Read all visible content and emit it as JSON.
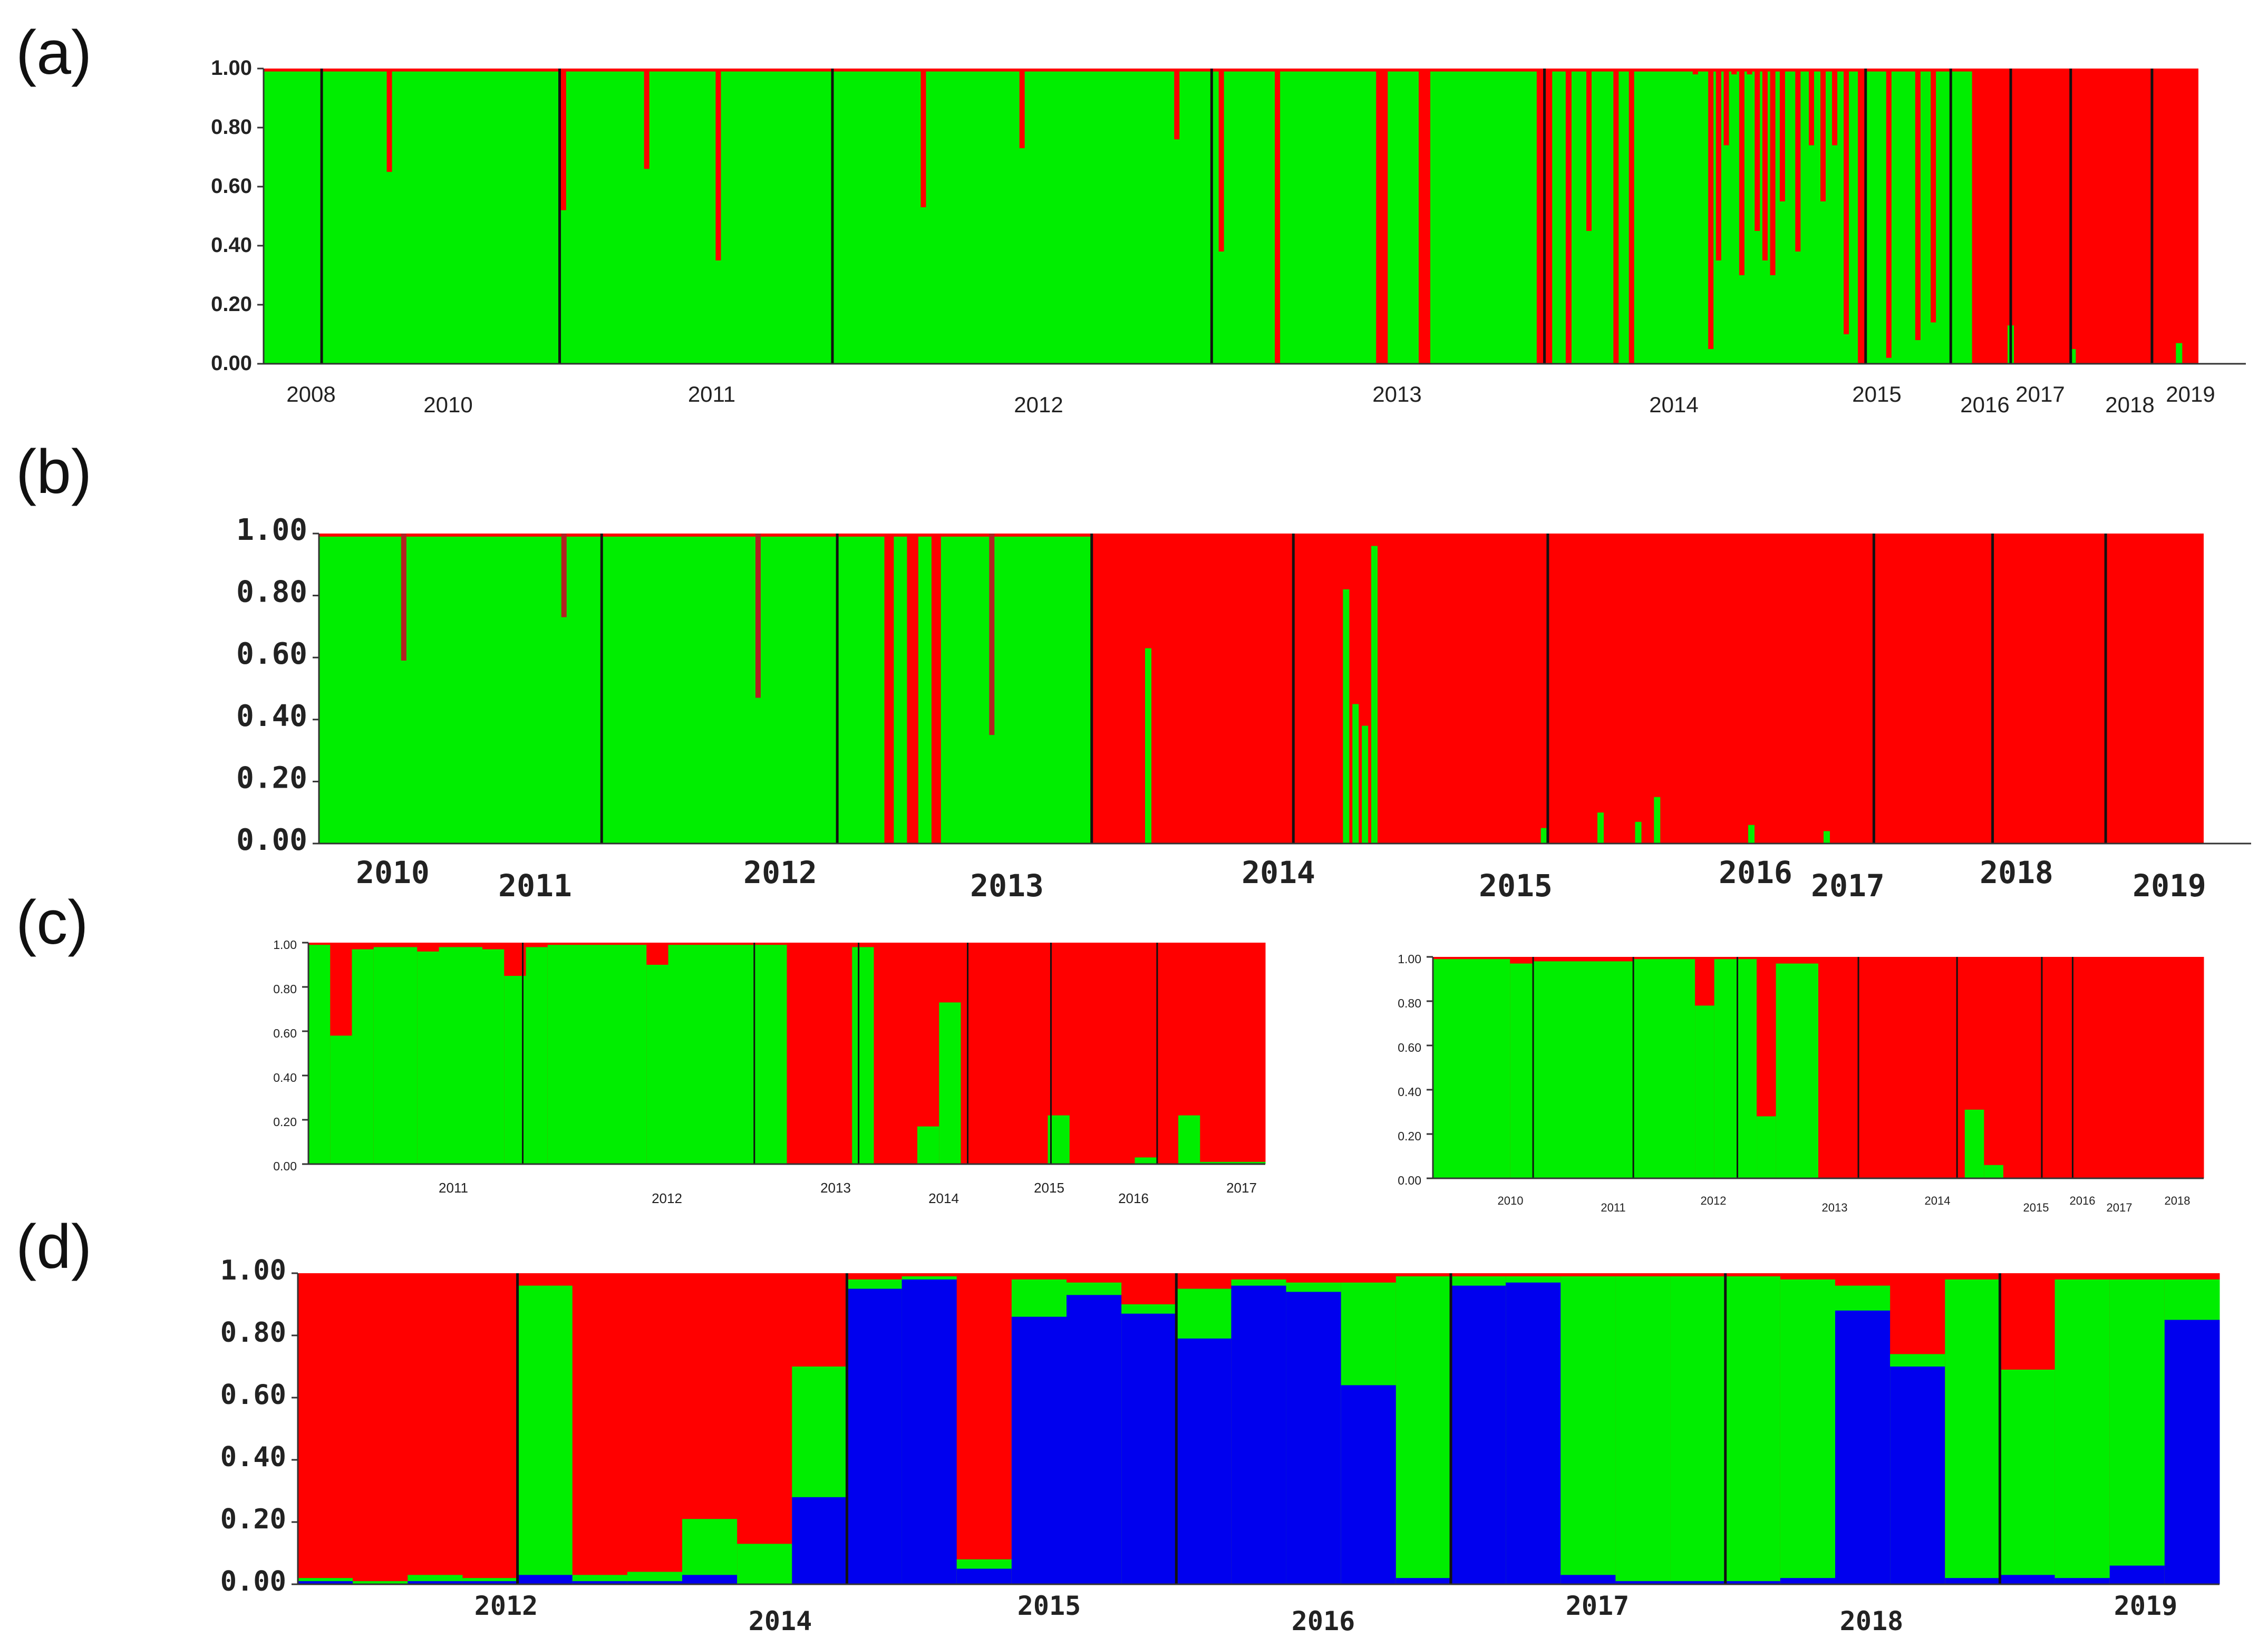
{
  "figure": {
    "labels": {
      "a": "(a)",
      "b": "(b)",
      "c": "(c)",
      "d": "(d)"
    }
  },
  "colors": {
    "green": "#00ee00",
    "red": "#ff0000",
    "blue": "#0000ee",
    "dark_red": "#b22222",
    "divider": "#111111"
  },
  "chart_data": [
    {
      "id": "a",
      "type": "bar",
      "stacked": true,
      "ylim": [
        0,
        1
      ],
      "yticks": [
        "0.00",
        "0.20",
        "0.40",
        "0.60",
        "0.80",
        "1.00"
      ],
      "xticks": [
        "2008",
        "2010",
        "2011",
        "2012",
        "2013",
        "2014",
        "2015",
        "2016",
        "2017",
        "2018",
        "2019"
      ],
      "series_names": [
        "cluster green",
        "cluster red"
      ],
      "segments": [
        {
          "from": 0.0,
          "to": 0.575,
          "value": 0.99
        },
        {
          "from": 0.575,
          "to": 0.581,
          "value": 0.0
        },
        {
          "from": 0.581,
          "to": 0.597,
          "value": 0.99
        },
        {
          "from": 0.597,
          "to": 0.603,
          "value": 0.0
        },
        {
          "from": 0.603,
          "to": 0.658,
          "value": 0.99
        },
        {
          "from": 0.658,
          "to": 0.666,
          "value": 0.0
        },
        {
          "from": 0.666,
          "to": 0.673,
          "value": 0.99
        },
        {
          "from": 0.673,
          "to": 0.676,
          "value": 0.0
        },
        {
          "from": 0.676,
          "to": 0.824,
          "value": 0.99
        },
        {
          "from": 0.824,
          "to": 0.828,
          "value": 0.0
        },
        {
          "from": 0.828,
          "to": 0.883,
          "value": 0.99
        },
        {
          "from": 0.883,
          "to": 1.0,
          "value": 0.0
        }
      ],
      "spikes": [
        {
          "x": 0.065,
          "value": 0.65
        },
        {
          "x": 0.155,
          "value": 0.52
        },
        {
          "x": 0.198,
          "value": 0.66
        },
        {
          "x": 0.235,
          "value": 0.35
        },
        {
          "x": 0.341,
          "value": 0.53
        },
        {
          "x": 0.392,
          "value": 0.73
        },
        {
          "x": 0.472,
          "value": 0.76
        },
        {
          "x": 0.495,
          "value": 0.38
        },
        {
          "x": 0.524,
          "value": 0.0
        },
        {
          "x": 0.685,
          "value": 0.45
        },
        {
          "x": 0.699,
          "value": 0.0
        },
        {
          "x": 0.707,
          "value": 0.0
        },
        {
          "x": 0.74,
          "value": 0.98
        },
        {
          "x": 0.748,
          "value": 0.05
        },
        {
          "x": 0.752,
          "value": 0.35
        },
        {
          "x": 0.756,
          "value": 0.74
        },
        {
          "x": 0.76,
          "value": 0.98
        },
        {
          "x": 0.764,
          "value": 0.3
        },
        {
          "x": 0.768,
          "value": 0.98
        },
        {
          "x": 0.772,
          "value": 0.45
        },
        {
          "x": 0.776,
          "value": 0.35
        },
        {
          "x": 0.78,
          "value": 0.3
        },
        {
          "x": 0.785,
          "value": 0.55
        },
        {
          "x": 0.793,
          "value": 0.38
        },
        {
          "x": 0.8,
          "value": 0.74
        },
        {
          "x": 0.806,
          "value": 0.55
        },
        {
          "x": 0.812,
          "value": 0.74
        },
        {
          "x": 0.818,
          "value": 0.1
        },
        {
          "x": 0.84,
          "value": 0.02
        },
        {
          "x": 0.855,
          "value": 0.08
        },
        {
          "x": 0.863,
          "value": 0.14
        },
        {
          "x": 0.903,
          "value": 0.13
        },
        {
          "x": 0.935,
          "value": 0.05
        },
        {
          "x": 0.99,
          "value": 0.07
        }
      ]
    },
    {
      "id": "b",
      "type": "bar",
      "stacked": true,
      "ylim": [
        0,
        1
      ],
      "yticks": [
        "0.00",
        "0.20",
        "0.40",
        "0.60",
        "0.80",
        "1.00"
      ],
      "xticks": [
        "2010",
        "2011",
        "2012",
        "2013",
        "2014",
        "2015",
        "2016",
        "2017",
        "2018",
        "2019"
      ],
      "series_names": [
        "cluster green",
        "cluster red"
      ],
      "segments": [
        {
          "from": 0.0,
          "to": 0.3,
          "value": 0.99
        },
        {
          "from": 0.3,
          "to": 0.305,
          "value": 0.0
        },
        {
          "from": 0.305,
          "to": 0.312,
          "value": 0.99
        },
        {
          "from": 0.312,
          "to": 0.318,
          "value": 0.0
        },
        {
          "from": 0.318,
          "to": 0.325,
          "value": 0.99
        },
        {
          "from": 0.325,
          "to": 0.33,
          "value": 0.0
        },
        {
          "from": 0.33,
          "to": 0.41,
          "value": 0.99
        },
        {
          "from": 0.41,
          "to": 1.0,
          "value": 0.0
        }
      ],
      "spikes": [
        {
          "x": 0.045,
          "value": 0.59
        },
        {
          "x": 0.13,
          "value": 0.73
        },
        {
          "x": 0.233,
          "value": 0.47
        },
        {
          "x": 0.357,
          "value": 0.35
        },
        {
          "x": 0.44,
          "value": 0.63
        },
        {
          "x": 0.545,
          "value": 0.82
        },
        {
          "x": 0.55,
          "value": 0.45
        },
        {
          "x": 0.555,
          "value": 0.38
        },
        {
          "x": 0.56,
          "value": 0.96
        },
        {
          "x": 0.65,
          "value": 0.05
        },
        {
          "x": 0.68,
          "value": 0.1
        },
        {
          "x": 0.7,
          "value": 0.07
        },
        {
          "x": 0.71,
          "value": 0.15
        },
        {
          "x": 0.76,
          "value": 0.06
        },
        {
          "x": 0.8,
          "value": 0.04
        }
      ]
    },
    {
      "id": "c_left",
      "type": "bar",
      "stacked": true,
      "ylim": [
        0,
        1
      ],
      "yticks": [
        "0.00",
        "0.20",
        "0.40",
        "0.60",
        "0.80",
        "1.00"
      ],
      "xticks": [
        "2011",
        "2012",
        "2013",
        "2014",
        "2015",
        "2016",
        "2017"
      ],
      "series_names": [
        "cluster green",
        "cluster red"
      ],
      "bars": [
        {
          "w": 0.022,
          "v": 0.99
        },
        {
          "w": 0.022,
          "v": 0.58
        },
        {
          "w": 0.022,
          "v": 0.97
        },
        {
          "w": 0.044,
          "v": 0.98
        },
        {
          "w": 0.022,
          "v": 0.96
        },
        {
          "w": 0.044,
          "v": 0.98
        },
        {
          "w": 0.022,
          "v": 0.97
        },
        {
          "w": 0.022,
          "v": 0.85
        },
        {
          "w": 0.022,
          "v": 0.98
        },
        {
          "w": 0.1,
          "v": 0.99
        },
        {
          "w": 0.022,
          "v": 0.9
        },
        {
          "w": 0.12,
          "v": 0.99
        },
        {
          "w": 0.066,
          "v": 0.0
        },
        {
          "w": 0.022,
          "v": 0.98
        },
        {
          "w": 0.044,
          "v": 0.0
        },
        {
          "w": 0.022,
          "v": 0.17
        },
        {
          "w": 0.022,
          "v": 0.73
        },
        {
          "w": 0.088,
          "v": 0.0
        },
        {
          "w": 0.022,
          "v": 0.22
        },
        {
          "w": 0.066,
          "v": 0.0
        },
        {
          "w": 0.022,
          "v": 0.03
        },
        {
          "w": 0.022,
          "v": 0.0
        },
        {
          "w": 0.022,
          "v": 0.22
        },
        {
          "w": 0.066,
          "v": 0.01
        }
      ]
    },
    {
      "id": "c_right",
      "type": "bar",
      "stacked": true,
      "ylim": [
        0,
        1
      ],
      "yticks": [
        "0.00",
        "0.20",
        "0.40",
        "0.60",
        "0.80",
        "1.00"
      ],
      "xticks": [
        "2010",
        "2011",
        "2012",
        "2013",
        "2014",
        "2015",
        "2016",
        "2017",
        "2018"
      ],
      "series_names": [
        "cluster green",
        "cluster red"
      ],
      "bars": [
        {
          "w": 0.1,
          "v": 0.99
        },
        {
          "w": 0.03,
          "v": 0.97
        },
        {
          "w": 0.13,
          "v": 0.98
        },
        {
          "w": 0.08,
          "v": 0.99
        },
        {
          "w": 0.025,
          "v": 0.78
        },
        {
          "w": 0.055,
          "v": 0.99
        },
        {
          "w": 0.025,
          "v": 0.28
        },
        {
          "w": 0.055,
          "v": 0.97
        },
        {
          "w": 0.19,
          "v": 0.0
        },
        {
          "w": 0.025,
          "v": 0.31
        },
        {
          "w": 0.025,
          "v": 0.06
        },
        {
          "w": 0.26,
          "v": 0.0
        }
      ]
    },
    {
      "id": "d",
      "type": "bar",
      "stacked": true,
      "ylim": [
        0,
        1
      ],
      "yticks": [
        "0.00",
        "0.20",
        "0.40",
        "0.60",
        "0.80",
        "1.00"
      ],
      "xticks": [
        "2012",
        "2014",
        "2015",
        "2016",
        "2017",
        "2018",
        "2019"
      ],
      "series_names": [
        "cluster blue",
        "cluster green",
        "cluster red"
      ],
      "bars": [
        {
          "blue": 0.01,
          "green": 0.01
        },
        {
          "blue": 0.0,
          "green": 0.01
        },
        {
          "blue": 0.01,
          "green": 0.02
        },
        {
          "blue": 0.01,
          "green": 0.01
        },
        {
          "blue": 0.03,
          "green": 0.93
        },
        {
          "blue": 0.01,
          "green": 0.02
        },
        {
          "blue": 0.01,
          "green": 0.03
        },
        {
          "blue": 0.03,
          "green": 0.18
        },
        {
          "blue": 0.0,
          "green": 0.13
        },
        {
          "blue": 0.28,
          "green": 0.42
        },
        {
          "blue": 0.95,
          "green": 0.03
        },
        {
          "blue": 0.98,
          "green": 0.01
        },
        {
          "blue": 0.05,
          "green": 0.03
        },
        {
          "blue": 0.86,
          "green": 0.12
        },
        {
          "blue": 0.93,
          "green": 0.04
        },
        {
          "blue": 0.87,
          "green": 0.03
        },
        {
          "blue": 0.79,
          "green": 0.16
        },
        {
          "blue": 0.96,
          "green": 0.02
        },
        {
          "blue": 0.94,
          "green": 0.03
        },
        {
          "blue": 0.64,
          "green": 0.33
        },
        {
          "blue": 0.02,
          "green": 0.97
        },
        {
          "blue": 0.96,
          "green": 0.03
        },
        {
          "blue": 0.97,
          "green": 0.02
        },
        {
          "blue": 0.03,
          "green": 0.96
        },
        {
          "blue": 0.01,
          "green": 0.98
        },
        {
          "blue": 0.01,
          "green": 0.98
        },
        {
          "blue": 0.01,
          "green": 0.98
        },
        {
          "blue": 0.02,
          "green": 0.96
        },
        {
          "blue": 0.88,
          "green": 0.08
        },
        {
          "blue": 0.7,
          "green": 0.04
        },
        {
          "blue": 0.02,
          "green": 0.96
        },
        {
          "blue": 0.03,
          "green": 0.66
        },
        {
          "blue": 0.02,
          "green": 0.96
        },
        {
          "blue": 0.06,
          "green": 0.92
        },
        {
          "blue": 0.85,
          "green": 0.13
        }
      ]
    }
  ]
}
